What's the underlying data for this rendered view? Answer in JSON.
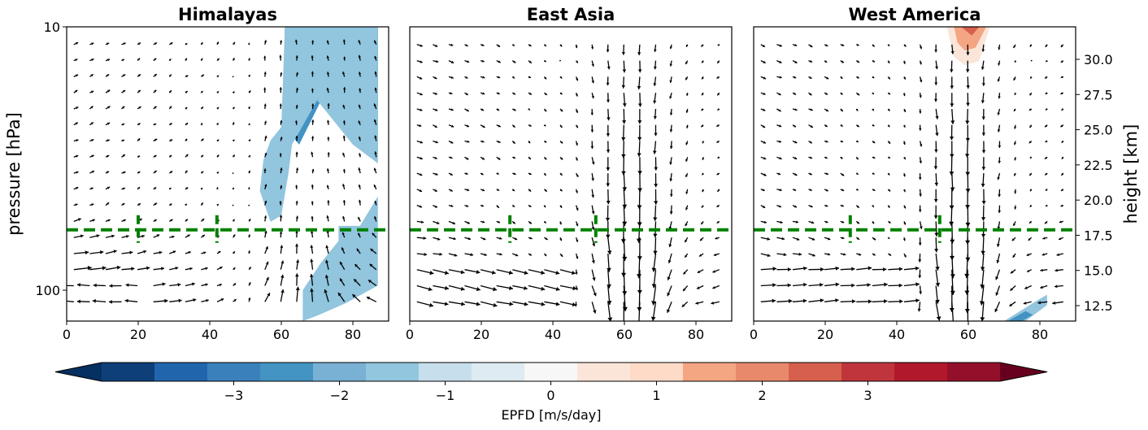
{
  "chart_data": {
    "type": "quiver_contour",
    "panels": [
      {
        "title": "Himalayas",
        "dashed_line_pressure_hPa": 59,
        "vertical_marks_x": [
          20,
          42
        ],
        "shading": [
          {
            "level": -2.5,
            "points": [
              [
                61,
                10
              ],
              [
                87,
                10
              ],
              [
                87,
                20
              ],
              [
                80,
                16
              ],
              [
                74,
                13
              ],
              [
                68,
                20
              ],
              [
                61,
                20
              ]
            ]
          },
          {
            "level": -1.5,
            "points": [
              [
                61,
                10
              ],
              [
                87,
                10
              ],
              [
                87,
                31
              ],
              [
                81,
                26
              ],
              [
                72,
                18
              ],
              [
                65,
                28
              ],
              [
                61,
                24
              ]
            ]
          },
          {
            "level": -0.5,
            "points": [
              [
                61,
                10
              ],
              [
                87,
                10
              ],
              [
                87,
                33
              ],
              [
                80,
                28
              ],
              [
                70,
                19
              ],
              [
                63,
                28
              ],
              [
                62,
                36
              ],
              [
                60,
                52
              ],
              [
                57,
                55
              ],
              [
                54,
                42
              ],
              [
                55,
                32
              ],
              [
                57,
                27
              ],
              [
                60,
                24
              ]
            ]
          },
          {
            "level": -0.5,
            "points": [
              [
                87,
                44
              ],
              [
                87,
                96
              ],
              [
                78,
                112
              ],
              [
                70,
                125
              ],
              [
                66,
                131
              ],
              [
                66,
                100
              ],
              [
                71,
                79
              ],
              [
                76,
                65
              ],
              [
                76,
                57
              ],
              [
                82,
                57
              ]
            ]
          }
        ]
      },
      {
        "title": "East Asia",
        "dashed_line_pressure_hPa": 59,
        "vertical_marks_x": [
          28,
          52
        ],
        "shading": []
      },
      {
        "title": "West America",
        "dashed_line_pressure_hPa": 59,
        "vertical_marks_x": [
          27,
          52
        ],
        "shading": [
          {
            "level": 1.5,
            "points": [
              [
                54,
                10
              ],
              [
                66,
                10
              ],
              [
                63,
                13.5
              ],
              [
                59,
                14
              ],
              [
                56,
                13
              ]
            ]
          },
          {
            "level": 2.5,
            "points": [
              [
                56,
                10
              ],
              [
                65,
                10
              ],
              [
                62,
                12
              ],
              [
                59,
                12.3
              ],
              [
                57,
                11.5
              ]
            ]
          },
          {
            "level": 3.5,
            "points": [
              [
                58,
                10
              ],
              [
                63,
                10
              ],
              [
                61,
                10.8
              ]
            ]
          },
          {
            "level": -0.5,
            "points": [
              [
                70,
                131
              ],
              [
                78,
                112
              ],
              [
                82,
                104
              ],
              [
                82,
                114
              ],
              [
                76,
                131
              ]
            ]
          },
          {
            "level": -1.5,
            "points": [
              [
                71,
                131
              ],
              [
                76,
                120
              ],
              [
                78,
                124
              ],
              [
                75,
                131
              ]
            ]
          }
        ]
      }
    ],
    "x": {
      "range": [
        0,
        90
      ],
      "ticks": [
        0,
        20,
        40,
        60,
        80
      ]
    },
    "y": {
      "label": "pressure [hPa]",
      "scale": "log",
      "range_hPa": [
        131,
        10
      ],
      "ticks": [
        10,
        100
      ]
    },
    "y2": {
      "label": "height [km]",
      "ticks": [
        "30.0",
        "27.5",
        "25.0",
        "22.5",
        "20.0",
        "17.5",
        "15.0",
        "12.5"
      ],
      "tick_values": [
        30.0,
        27.5,
        25.0,
        22.5,
        20.0,
        17.5,
        15.0,
        12.5
      ]
    },
    "colorbar": {
      "label": "EPFD [m/s/day]",
      "levels": [
        -3.5,
        -3,
        -2.5,
        -2,
        -1.5,
        -1,
        -0.5,
        0,
        0.5,
        1,
        1.5,
        2,
        2.5,
        3,
        3.5
      ],
      "colors": [
        "#053061",
        "#0e3f78",
        "#2166ac",
        "#3a81bc",
        "#4393c3",
        "#78b1d4",
        "#92c5de",
        "#c7dfed",
        "#deebf2",
        "#f7f7f7",
        "#fbe5d9",
        "#fddbc7",
        "#f4a582",
        "#e8896b",
        "#d6604d",
        "#c0353c",
        "#b2182b",
        "#94102a",
        "#67001f"
      ],
      "ticks": [
        -3,
        -2,
        -1,
        0,
        1,
        2,
        3
      ],
      "tick_labels": [
        "−3",
        "−2",
        "−1",
        "0",
        "1",
        "2",
        "3"
      ],
      "extend": "both"
    },
    "vector_field_description": "EP flux arrows; upward-converging at 60–70°N in lower levels, divergent outward below 100 hPa",
    "dashed_line_color": "#008000"
  }
}
